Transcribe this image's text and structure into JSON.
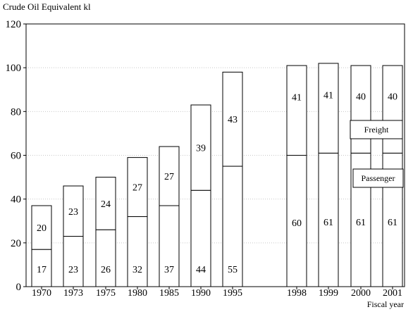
{
  "chart_data": {
    "type": "bar",
    "stacked": true,
    "ylabel": "Crude Oil Equivalent kl",
    "xlabel": "Fiscal year",
    "ylim": [
      0,
      120
    ],
    "yticks": [
      0,
      20,
      40,
      60,
      80,
      100,
      120
    ],
    "grid": "horizontal dotted",
    "categories": [
      "1970",
      "1973",
      "1975",
      "1980",
      "1985",
      "1990",
      "1995",
      "1998",
      "1999",
      "2000",
      "2001"
    ],
    "series": [
      {
        "name": "Passenger",
        "values": [
          17,
          23,
          26,
          32,
          37,
          44,
          55,
          60,
          61,
          61,
          61
        ]
      },
      {
        "name": "Freight",
        "values": [
          20,
          23,
          24,
          27,
          27,
          39,
          43,
          41,
          41,
          40,
          40
        ]
      }
    ],
    "legend_placement": "inside-right"
  }
}
